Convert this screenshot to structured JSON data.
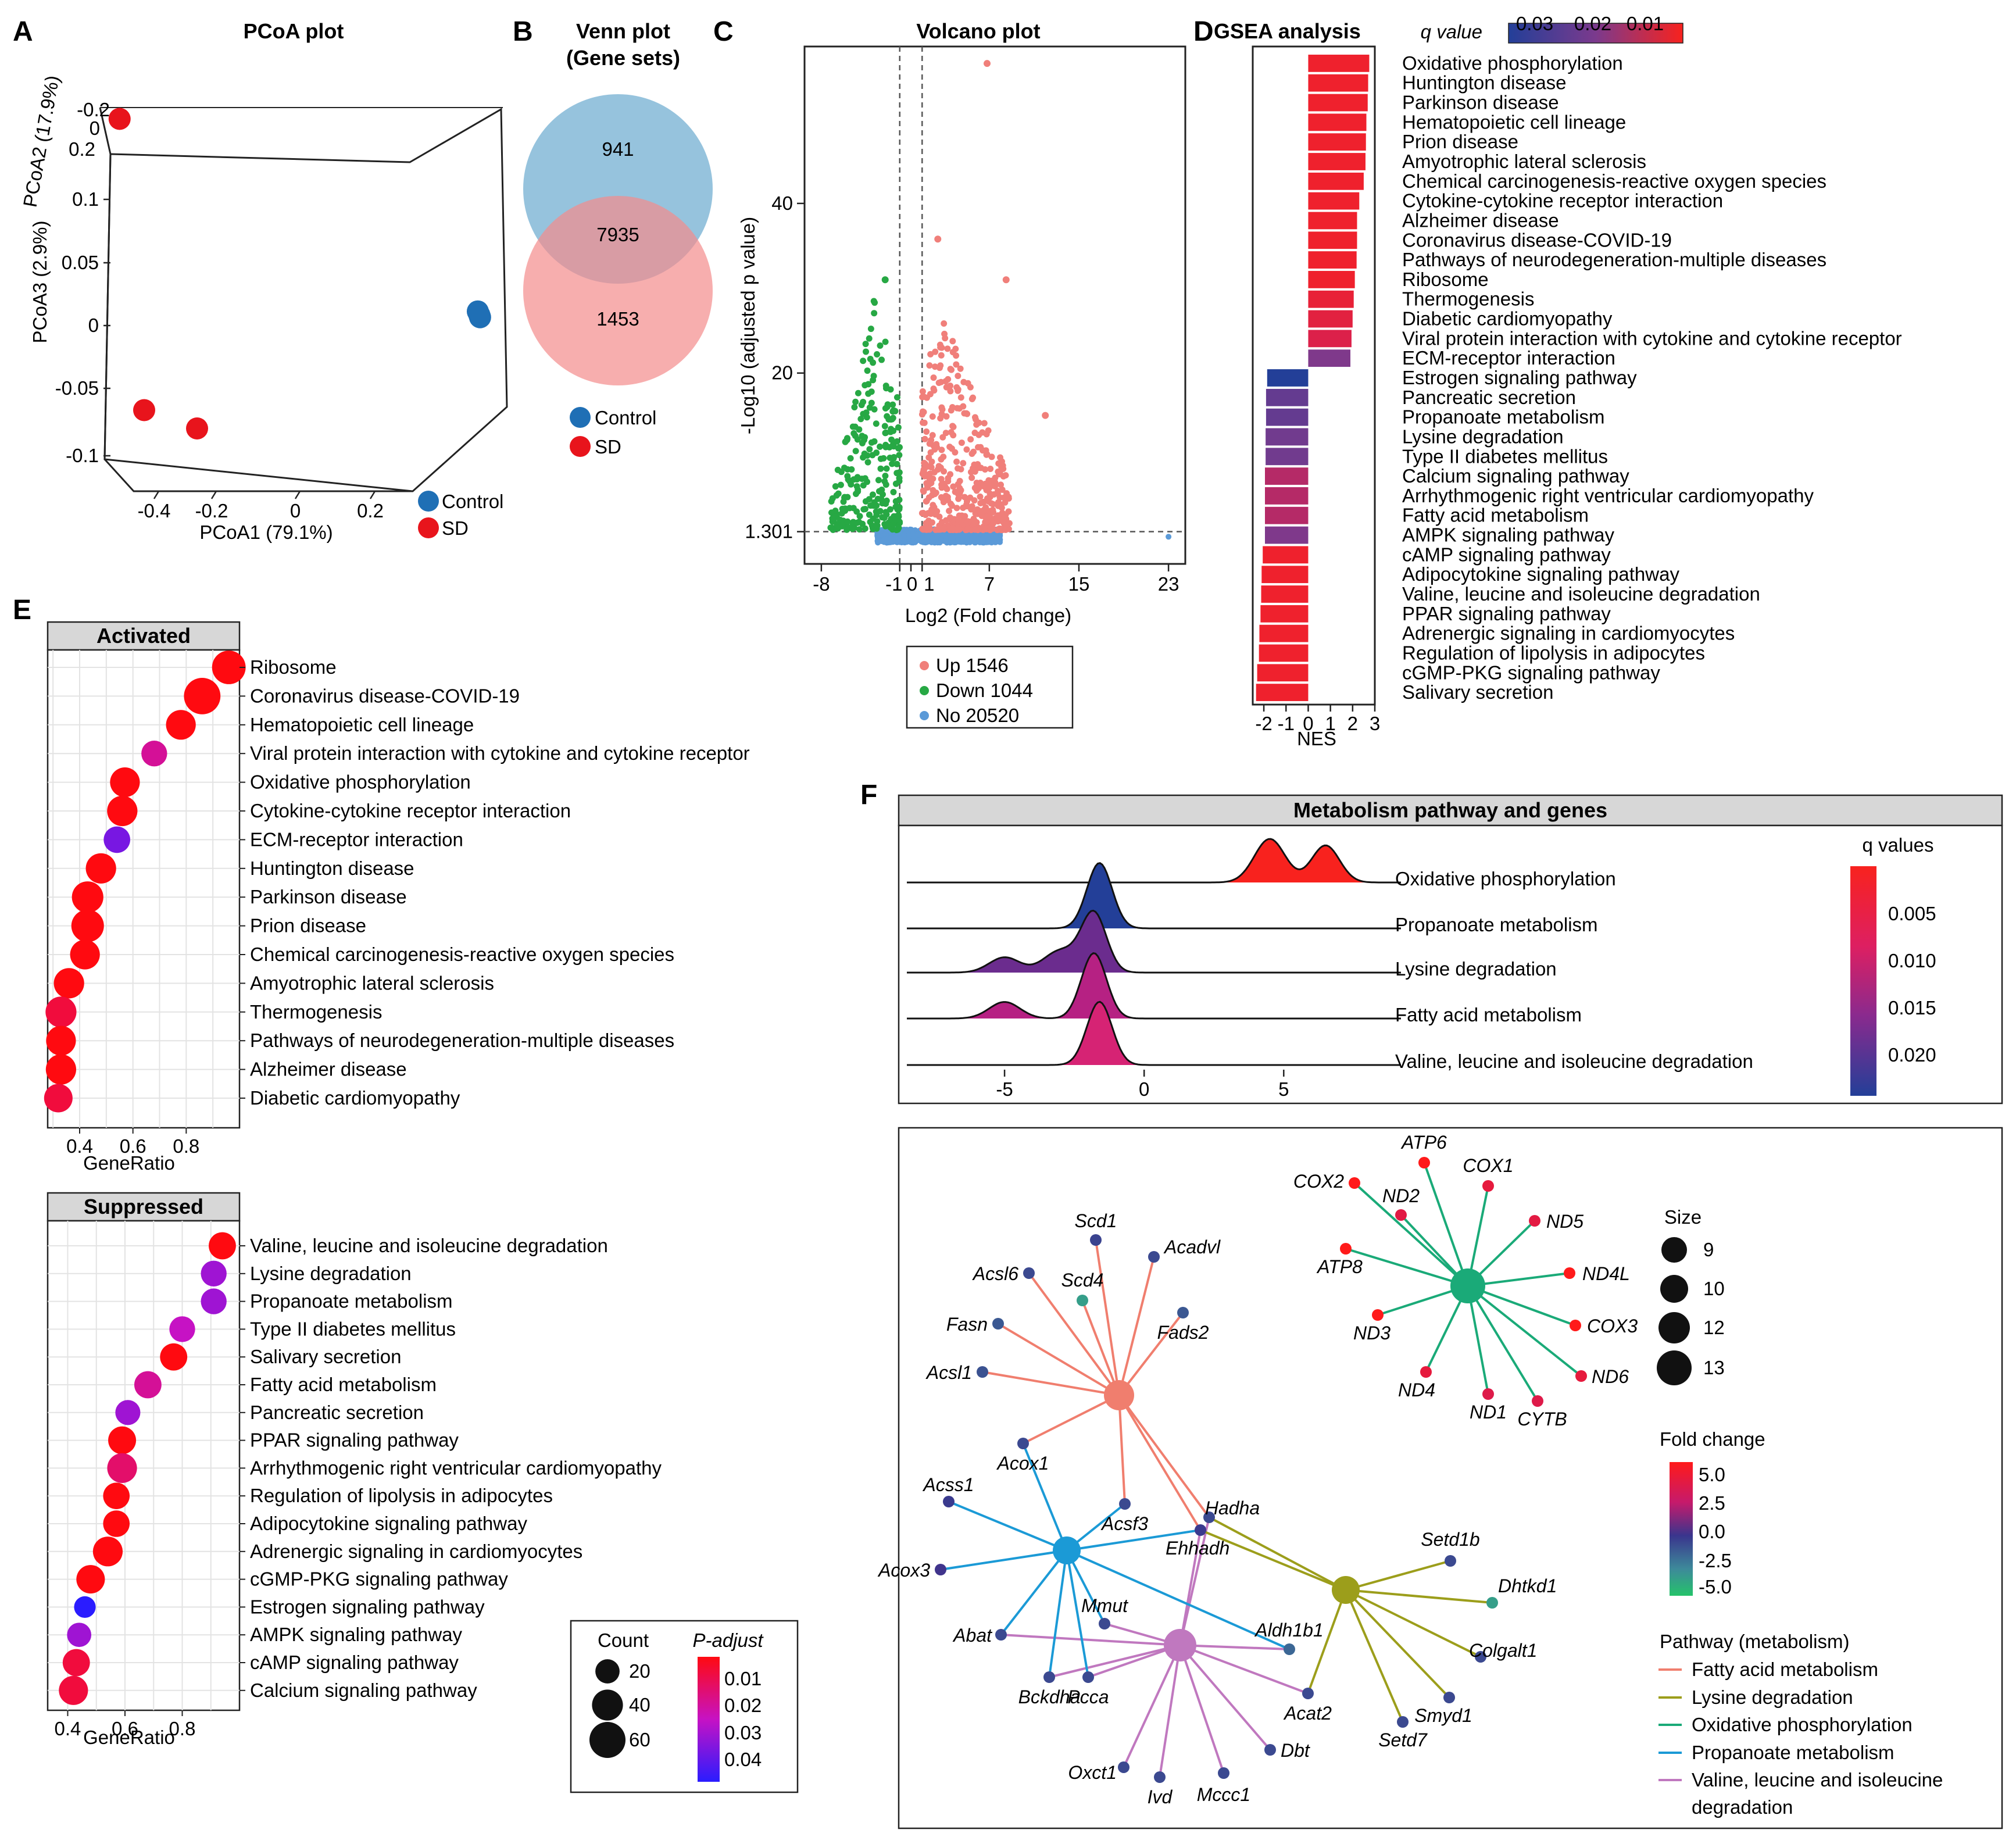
{
  "chart_data": [
    {
      "panel": "A",
      "type": "scatter",
      "title": "PCoA plot",
      "xlabel": "PCoA1 (79.1%)",
      "ylabel": "PCoA3 (2.9%)",
      "zlabel": "PCoA2 (17.9%)",
      "x_ticks": [
        "-0.4",
        "-0.2",
        "0",
        "0.2"
      ],
      "y_ticks": [
        "0.1",
        "0.05",
        "0",
        "-0.05",
        "-0.1"
      ],
      "z_ticks": [
        "-0.2",
        "0",
        "0.2"
      ],
      "legend": [
        {
          "label": "Control",
          "color": "#1f6fb5"
        },
        {
          "label": "SD",
          "color": "#e8141c"
        }
      ],
      "groups": [
        {
          "name": "Control",
          "points": [
            [
              0.45,
              0.005,
              0.02
            ],
            [
              0.45,
              0.004,
              0.015
            ],
            [
              0.45,
              0.006,
              0.03
            ]
          ]
        },
        {
          "name": "SD",
          "points": [
            [
              -0.35,
              0.13,
              0.2
            ],
            [
              -0.4,
              -0.05,
              -0.1
            ],
            [
              -0.2,
              -0.1,
              0.1
            ]
          ]
        }
      ]
    },
    {
      "panel": "B",
      "type": "venn",
      "title": "Venn plot",
      "subtitle": "(Gene sets)",
      "sets": [
        {
          "name": "Control",
          "color": "#6aa9cf",
          "only": "941"
        },
        {
          "name": "SD",
          "color": "#f48b8b",
          "only": "1453"
        }
      ],
      "intersection": "7935"
    },
    {
      "panel": "C",
      "type": "scatter",
      "title": "Volcano plot",
      "xlabel": "Log2 (Fold change)",
      "ylabel": "-Log10 (adjusted p value)",
      "x_ticks": [
        -8,
        -1,
        0,
        1,
        7,
        15,
        23
      ],
      "y_ticks": [
        {
          "value": 1.301,
          "label": "1.301"
        },
        {
          "value": 20,
          "label": "20"
        },
        {
          "value": 40,
          "label": "40"
        }
      ],
      "xlim": [
        -9.5,
        24.5
      ],
      "ylim": [
        -2.5,
        58.5
      ],
      "vlines": [
        -1,
        1
      ],
      "hline": 1.301,
      "legend": [
        {
          "label": "Up 1546",
          "color": "#f07f7a"
        },
        {
          "label": "Down 1044",
          "color": "#27a844"
        },
        {
          "label": "No 20520",
          "color": "#5b9ad8"
        }
      ],
      "highlight_points": [
        [
          6.8,
          56.5
        ],
        [
          8.5,
          31
        ],
        [
          2.4,
          35.8
        ],
        [
          12,
          15
        ],
        [
          -2.3,
          31
        ]
      ]
    },
    {
      "panel": "D",
      "type": "bar",
      "title": "GSEA analysis",
      "xlabel": "NES",
      "x_ticks": [
        -2,
        -1,
        0,
        1,
        2,
        3
      ],
      "xlim": [
        -2.5,
        3.0
      ],
      "legend_title": "q value",
      "legend_ticks": [
        "0.03",
        "0.02",
        "0.01"
      ],
      "categories": [
        "Oxidative phosphorylation",
        "Huntington disease",
        "Parkinson disease",
        "Hematopoietic cell lineage",
        "Prion disease",
        "Amyotrophic lateral sclerosis",
        "Chemical carcinogenesis-reactive oxygen species",
        "Cytokine-cytokine receptor interaction",
        "Alzheimer disease",
        "Coronavirus disease-COVID-19",
        "Pathways of neurodegeneration-multiple diseases",
        "Ribosome",
        "Thermogenesis",
        "Diabetic cardiomyopathy",
        "Viral protein interaction with cytokine and cytokine receptor",
        "ECM-receptor interaction",
        "Estrogen signaling pathway",
        "Pancreatic secretion",
        "Propanoate metabolism",
        "Lysine degradation",
        "Type II diabetes mellitus",
        "Calcium signaling pathway",
        "Arrhythmogenic right ventricular cardiomyopathy",
        "Fatty acid metabolism",
        "AMPK signaling pathway",
        "cAMP signaling pathway",
        "Adipocytokine signaling pathway",
        "Valine, leucine and isoleucine degradation",
        "PPAR signaling pathway",
        "Adrenergic signaling in cardiomyocytes",
        "Regulation of lipolysis in adipocytes",
        "cGMP-PKG signaling pathway",
        "Salivary secretion"
      ],
      "values": [
        2.75,
        2.7,
        2.68,
        2.62,
        2.6,
        2.58,
        2.5,
        2.3,
        2.2,
        2.2,
        2.18,
        2.1,
        2.05,
        2.0,
        1.95,
        1.9,
        -1.85,
        -1.9,
        -1.9,
        -1.92,
        -1.92,
        -1.95,
        -1.95,
        -1.95,
        -1.95,
        -2.05,
        -2.1,
        -2.12,
        -2.15,
        -2.2,
        -2.22,
        -2.3,
        -2.35
      ],
      "q_values": [
        0.003,
        0.003,
        0.003,
        0.003,
        0.003,
        0.003,
        0.003,
        0.003,
        0.003,
        0.003,
        0.003,
        0.003,
        0.005,
        0.007,
        0.009,
        0.02,
        0.034,
        0.024,
        0.024,
        0.022,
        0.022,
        0.014,
        0.014,
        0.014,
        0.02,
        0.003,
        0.003,
        0.003,
        0.003,
        0.003,
        0.003,
        0.003,
        0.003
      ]
    },
    {
      "panel": "E",
      "type": "scatter",
      "title": "Activated",
      "xlabel": "GeneRatio",
      "x_ticks": [
        0.4,
        0.6,
        0.8
      ],
      "xlim": [
        0.28,
        1.0
      ],
      "categories": [
        "Ribosome",
        "Coronavirus disease-COVID-19",
        "Hematopoietic cell lineage",
        "Viral protein interaction with cytokine and cytokine receptor",
        "Oxidative phosphorylation",
        "Cytokine-cytokine receptor interaction",
        "ECM-receptor interaction",
        "Huntington disease",
        "Parkinson disease",
        "Prion disease",
        "Chemical carcinogenesis-reactive oxygen species",
        "Amyotrophic lateral sclerosis",
        "Thermogenesis",
        "Pathways of neurodegeneration-multiple diseases",
        "Alzheimer disease",
        "Diabetic cardiomyopathy"
      ],
      "gene_ratio": [
        0.96,
        0.86,
        0.78,
        0.68,
        0.57,
        0.56,
        0.54,
        0.48,
        0.43,
        0.43,
        0.42,
        0.36,
        0.33,
        0.33,
        0.33,
        0.32
      ],
      "count": [
        50,
        62,
        36,
        24,
        36,
        38,
        26,
        38,
        42,
        46,
        36,
        38,
        40,
        36,
        38,
        32
      ],
      "p_adjust": [
        0.005,
        0.005,
        0.005,
        0.02,
        0.005,
        0.005,
        0.035,
        0.005,
        0.005,
        0.005,
        0.005,
        0.005,
        0.01,
        0.005,
        0.005,
        0.01
      ]
    },
    {
      "panel": "E",
      "type": "scatter",
      "title": "Suppressed",
      "xlabel": "GeneRatio",
      "x_ticks": [
        0.4,
        0.6,
        0.8
      ],
      "xlim": [
        0.33,
        1.0
      ],
      "categories": [
        "Valine, leucine and isoleucine degradation",
        "Lysine degradation",
        "Propanoate metabolism",
        "Type II diabetes mellitus",
        "Salivary secretion",
        "Fatty acid metabolism",
        "Pancreatic secretion",
        "PPAR signaling pathway",
        "Arrhythmogenic right ventricular cardiomyopathy",
        "Regulation of lipolysis in adipocytes",
        "Adipocytokine signaling pathway",
        "Adrenergic signaling in cardiomyocytes",
        "cGMP-PKG signaling pathway",
        "Estrogen signaling pathway",
        "AMPK signaling pathway",
        "cAMP signaling pathway",
        "Calcium signaling pathway"
      ],
      "gene_ratio": [
        0.94,
        0.91,
        0.91,
        0.8,
        0.77,
        0.68,
        0.61,
        0.59,
        0.59,
        0.57,
        0.57,
        0.54,
        0.48,
        0.46,
        0.44,
        0.43,
        0.42
      ],
      "count": [
        28,
        24,
        24,
        24,
        28,
        28,
        22,
        30,
        36,
        26,
        26,
        36,
        32,
        14,
        20,
        28,
        34
      ],
      "p_adjust": [
        0.005,
        0.03,
        0.03,
        0.025,
        0.005,
        0.02,
        0.03,
        0.005,
        0.015,
        0.005,
        0.005,
        0.005,
        0.005,
        0.045,
        0.03,
        0.01,
        0.01
      ],
      "legend_count": {
        "title": "Count",
        "items": [
          "20",
          "40",
          "60"
        ],
        "values": [
          20,
          40,
          60
        ]
      },
      "legend_padjust": {
        "title": "P-adjust",
        "ticks": [
          "0.01",
          "0.02",
          "0.03",
          "0.04"
        ]
      }
    },
    {
      "panel": "F",
      "type": "area",
      "title": "Metabolism pathway and genes",
      "x_ticks": [
        -5,
        0,
        5
      ],
      "xlim": [
        -8.5,
        9.2
      ],
      "legend_title": "q values",
      "legend_ticks": [
        "0.005",
        "0.010",
        "0.015",
        "0.020"
      ],
      "ridges": [
        {
          "name": "Oxidative phosphorylation",
          "color": "#f8221e",
          "peaks": [
            [
              4.5,
              0.55,
              1.0
            ],
            [
              6.5,
              0.5,
              0.85
            ]
          ]
        },
        {
          "name": "Propanoate metabolism",
          "color": "#233f98",
          "peaks": [
            [
              -1.6,
              0.45,
              1.5
            ]
          ]
        },
        {
          "name": "Lysine degradation",
          "color": "#6b2c8e",
          "peaks": [
            [
              -5.0,
              0.55,
              0.35
            ],
            [
              -3.0,
              0.6,
              0.5
            ],
            [
              -1.8,
              0.45,
              1.35
            ]
          ]
        },
        {
          "name": "Fatty acid metabolism",
          "color": "#b62183",
          "peaks": [
            [
              -5.0,
              0.55,
              0.38
            ],
            [
              -1.8,
              0.45,
              1.5
            ]
          ]
        },
        {
          "name": "Valine, leucine and isoleucine degradation",
          "color": "#d62374",
          "peaks": [
            [
              -1.6,
              0.45,
              1.45
            ]
          ]
        }
      ]
    },
    {
      "panel": "F",
      "type": "network",
      "legend_size": {
        "title": "Size",
        "items": [
          "9",
          "10",
          "12",
          "13"
        ]
      },
      "legend_fold": {
        "title": "Fold change",
        "ticks": [
          "5.0",
          "2.5",
          "0.0",
          "-2.5",
          "-5.0"
        ]
      },
      "legend_pathway": {
        "title": "Pathway (metabolism)",
        "items": [
          {
            "label": "Fatty acid metabolism",
            "color": "#f07e6e"
          },
          {
            "label": "Lysine degradation",
            "color": "#9c9e1b"
          },
          {
            "label": "Oxidative phosphorylation",
            "color": "#1aaa78"
          },
          {
            "label": "Propanoate metabolism",
            "color": "#1b9ad6"
          },
          {
            "label": "Valine, leucine and isoleucine degradation",
            "color": "#c078bf"
          }
        ]
      },
      "genes": [
        {
          "name": "ATP6",
          "fc": 6.0,
          "path": [
            "oxphos"
          ]
        },
        {
          "name": "COX1",
          "fc": 4.5,
          "path": [
            "oxphos"
          ]
        },
        {
          "name": "COX2",
          "fc": 6.0,
          "path": [
            "oxphos"
          ]
        },
        {
          "name": "ND2",
          "fc": 4.2,
          "path": [
            "oxphos"
          ]
        },
        {
          "name": "ND5",
          "fc": 4.3,
          "path": [
            "oxphos"
          ]
        },
        {
          "name": "ATP8",
          "fc": 6.0,
          "path": [
            "oxphos"
          ]
        },
        {
          "name": "ND4L",
          "fc": 6.0,
          "path": [
            "oxphos"
          ]
        },
        {
          "name": "ND3",
          "fc": 6.0,
          "path": [
            "oxphos"
          ]
        },
        {
          "name": "COX3",
          "fc": 6.0,
          "path": [
            "oxphos"
          ]
        },
        {
          "name": "ND6",
          "fc": 4.5,
          "path": [
            "oxphos"
          ]
        },
        {
          "name": "ND4",
          "fc": 4.5,
          "path": [
            "oxphos"
          ]
        },
        {
          "name": "ND1",
          "fc": 4.0,
          "path": [
            "oxphos"
          ]
        },
        {
          "name": "CYTB",
          "fc": 4.0,
          "path": [
            "oxphos"
          ]
        },
        {
          "name": "Scd1",
          "fc": -0.8,
          "path": [
            "fatty"
          ]
        },
        {
          "name": "Acadvl",
          "fc": -1.0,
          "path": [
            "fatty"
          ]
        },
        {
          "name": "Acsl6",
          "fc": -1.0,
          "path": [
            "fatty"
          ]
        },
        {
          "name": "Scd4",
          "fc": -4.0,
          "path": [
            "fatty"
          ]
        },
        {
          "name": "Fads2",
          "fc": -1.5,
          "path": [
            "fatty"
          ]
        },
        {
          "name": "Fasn",
          "fc": -1.5,
          "path": [
            "fatty"
          ]
        },
        {
          "name": "Acsl1",
          "fc": -1.3,
          "path": [
            "fatty"
          ]
        },
        {
          "name": "Acox1",
          "fc": -1.0,
          "path": [
            "fatty",
            "propanoate"
          ]
        },
        {
          "name": "Acsf3",
          "fc": -1.0,
          "path": [
            "fatty",
            "propanoate"
          ]
        },
        {
          "name": "Hadha",
          "fc": -1.0,
          "path": [
            "fatty",
            "valine",
            "lysine"
          ]
        },
        {
          "name": "Ehhadh",
          "fc": -0.5,
          "path": [
            "fatty",
            "valine",
            "lysine",
            "propanoate"
          ]
        },
        {
          "name": "Acss1",
          "fc": -0.5,
          "path": [
            "propanoate"
          ]
        },
        {
          "name": "Acox3",
          "fc": -0.2,
          "path": [
            "propanoate"
          ]
        },
        {
          "name": "Mmut",
          "fc": -1.0,
          "path": [
            "propanoate",
            "valine"
          ]
        },
        {
          "name": "Abat",
          "fc": -1.0,
          "path": [
            "propanoate",
            "valine"
          ]
        },
        {
          "name": "Bckdha",
          "fc": -1.0,
          "path": [
            "propanoate",
            "valine"
          ]
        },
        {
          "name": "Pcca",
          "fc": -1.0,
          "path": [
            "propanoate",
            "valine"
          ]
        },
        {
          "name": "Aldh1b1",
          "fc": -2.0,
          "path": [
            "valine",
            "propanoate"
          ]
        },
        {
          "name": "Acat2",
          "fc": -1.0,
          "path": [
            "valine",
            "lysine"
          ]
        },
        {
          "name": "Oxct1",
          "fc": -1.0,
          "path": [
            "valine"
          ]
        },
        {
          "name": "Ivd",
          "fc": -1.0,
          "path": [
            "valine"
          ]
        },
        {
          "name": "Mccc1",
          "fc": -1.0,
          "path": [
            "valine"
          ]
        },
        {
          "name": "Dbt",
          "fc": -1.0,
          "path": [
            "valine"
          ]
        },
        {
          "name": "Setd1b",
          "fc": -1.0,
          "path": [
            "lysine"
          ]
        },
        {
          "name": "Dhtkd1",
          "fc": -4.0,
          "path": [
            "lysine"
          ]
        },
        {
          "name": "Colgalt1",
          "fc": -1.0,
          "path": [
            "lysine"
          ]
        },
        {
          "name": "Smyd1",
          "fc": -1.0,
          "path": [
            "lysine"
          ]
        },
        {
          "name": "Setd7",
          "fc": -1.0,
          "path": [
            "lysine"
          ]
        }
      ]
    }
  ],
  "labels": {
    "A": "A",
    "B": "B",
    "C": "C",
    "D": "D",
    "E": "E",
    "F": "F"
  }
}
